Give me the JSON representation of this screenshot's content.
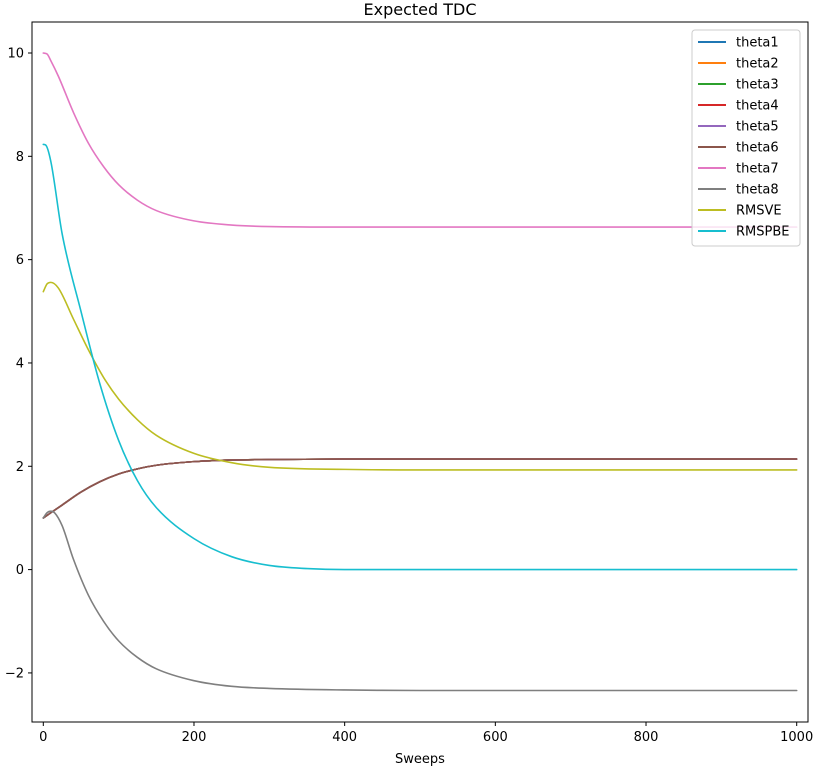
{
  "chart_data": {
    "type": "line",
    "title": "Expected TDC",
    "xlabel": "Sweeps",
    "ylabel": "",
    "xlim": [
      -15,
      1015
    ],
    "ylim": [
      -2.95,
      10.6
    ],
    "xticks": [
      0,
      200,
      400,
      600,
      800,
      1000
    ],
    "xtick_labels": [
      "0",
      "200",
      "400",
      "600",
      "800",
      "1000"
    ],
    "yticks": [
      -2,
      0,
      2,
      4,
      6,
      8,
      10
    ],
    "ytick_labels": [
      "−2",
      "0",
      "2",
      "4",
      "6",
      "8",
      "10"
    ],
    "legend_position": "top-right",
    "series": [
      {
        "name": "theta1",
        "color": "#1f77b4",
        "x": [
          0,
          10,
          25,
          50,
          75,
          100,
          125,
          150,
          200,
          250,
          300,
          400,
          500,
          700,
          1000
        ],
        "y": [
          1.0,
          1.1,
          1.25,
          1.5,
          1.7,
          1.85,
          1.95,
          2.02,
          2.09,
          2.12,
          2.13,
          2.14,
          2.14,
          2.14,
          2.14
        ]
      },
      {
        "name": "theta2",
        "color": "#ff7f0e",
        "x": [
          0,
          10,
          25,
          50,
          75,
          100,
          125,
          150,
          200,
          250,
          300,
          400,
          500,
          700,
          1000
        ],
        "y": [
          1.0,
          1.1,
          1.25,
          1.5,
          1.7,
          1.85,
          1.95,
          2.02,
          2.09,
          2.12,
          2.13,
          2.14,
          2.14,
          2.14,
          2.14
        ]
      },
      {
        "name": "theta3",
        "color": "#2ca02c",
        "x": [
          0,
          10,
          25,
          50,
          75,
          100,
          125,
          150,
          200,
          250,
          300,
          400,
          500,
          700,
          1000
        ],
        "y": [
          1.0,
          1.1,
          1.25,
          1.5,
          1.7,
          1.85,
          1.95,
          2.02,
          2.09,
          2.12,
          2.13,
          2.14,
          2.14,
          2.14,
          2.14
        ]
      },
      {
        "name": "theta4",
        "color": "#d62728",
        "x": [
          0,
          10,
          25,
          50,
          75,
          100,
          125,
          150,
          200,
          250,
          300,
          400,
          500,
          700,
          1000
        ],
        "y": [
          1.0,
          1.1,
          1.25,
          1.5,
          1.7,
          1.85,
          1.95,
          2.02,
          2.09,
          2.12,
          2.13,
          2.14,
          2.14,
          2.14,
          2.14
        ]
      },
      {
        "name": "theta5",
        "color": "#9467bd",
        "x": [
          0,
          10,
          25,
          50,
          75,
          100,
          125,
          150,
          200,
          250,
          300,
          400,
          500,
          700,
          1000
        ],
        "y": [
          1.0,
          1.1,
          1.25,
          1.5,
          1.7,
          1.85,
          1.95,
          2.02,
          2.09,
          2.12,
          2.13,
          2.14,
          2.14,
          2.14,
          2.14
        ]
      },
      {
        "name": "theta6",
        "color": "#8c564b",
        "x": [
          0,
          10,
          25,
          50,
          75,
          100,
          125,
          150,
          200,
          250,
          300,
          400,
          500,
          700,
          1000
        ],
        "y": [
          1.0,
          1.1,
          1.25,
          1.5,
          1.7,
          1.85,
          1.95,
          2.02,
          2.09,
          2.12,
          2.13,
          2.14,
          2.14,
          2.14,
          2.14
        ]
      },
      {
        "name": "theta7",
        "color": "#e377c2",
        "x": [
          0,
          5,
          10,
          20,
          40,
          60,
          80,
          100,
          125,
          150,
          200,
          250,
          300,
          400,
          500,
          700,
          1000
        ],
        "y": [
          10.0,
          9.98,
          9.85,
          9.55,
          8.85,
          8.25,
          7.8,
          7.45,
          7.15,
          6.95,
          6.75,
          6.67,
          6.64,
          6.63,
          6.63,
          6.63,
          6.63
        ]
      },
      {
        "name": "theta8",
        "color": "#7f7f7f",
        "x": [
          0,
          5,
          10,
          15,
          25,
          40,
          60,
          80,
          100,
          125,
          150,
          200,
          250,
          300,
          400,
          500,
          700,
          1000
        ],
        "y": [
          1.0,
          1.1,
          1.13,
          1.1,
          0.85,
          0.2,
          -0.5,
          -1.0,
          -1.38,
          -1.7,
          -1.92,
          -2.15,
          -2.26,
          -2.3,
          -2.33,
          -2.34,
          -2.34,
          -2.34
        ]
      },
      {
        "name": "RMSVE",
        "color": "#bcbd22",
        "x": [
          0,
          5,
          10,
          20,
          40,
          60,
          80,
          100,
          125,
          150,
          200,
          250,
          300,
          400,
          500,
          700,
          1000
        ],
        "y": [
          5.38,
          5.53,
          5.56,
          5.45,
          4.85,
          4.25,
          3.72,
          3.3,
          2.9,
          2.6,
          2.25,
          2.07,
          1.98,
          1.94,
          1.93,
          1.93,
          1.93
        ]
      },
      {
        "name": "RMSPBE",
        "color": "#17becf",
        "x": [
          0,
          3,
          10,
          25,
          50,
          75,
          100,
          125,
          150,
          200,
          250,
          300,
          350,
          400,
          500,
          700,
          1000
        ],
        "y": [
          8.23,
          8.22,
          7.9,
          6.5,
          5.0,
          3.6,
          2.5,
          1.72,
          1.2,
          0.6,
          0.25,
          0.08,
          0.02,
          0.0,
          0.0,
          0.0,
          0.0
        ]
      }
    ]
  }
}
